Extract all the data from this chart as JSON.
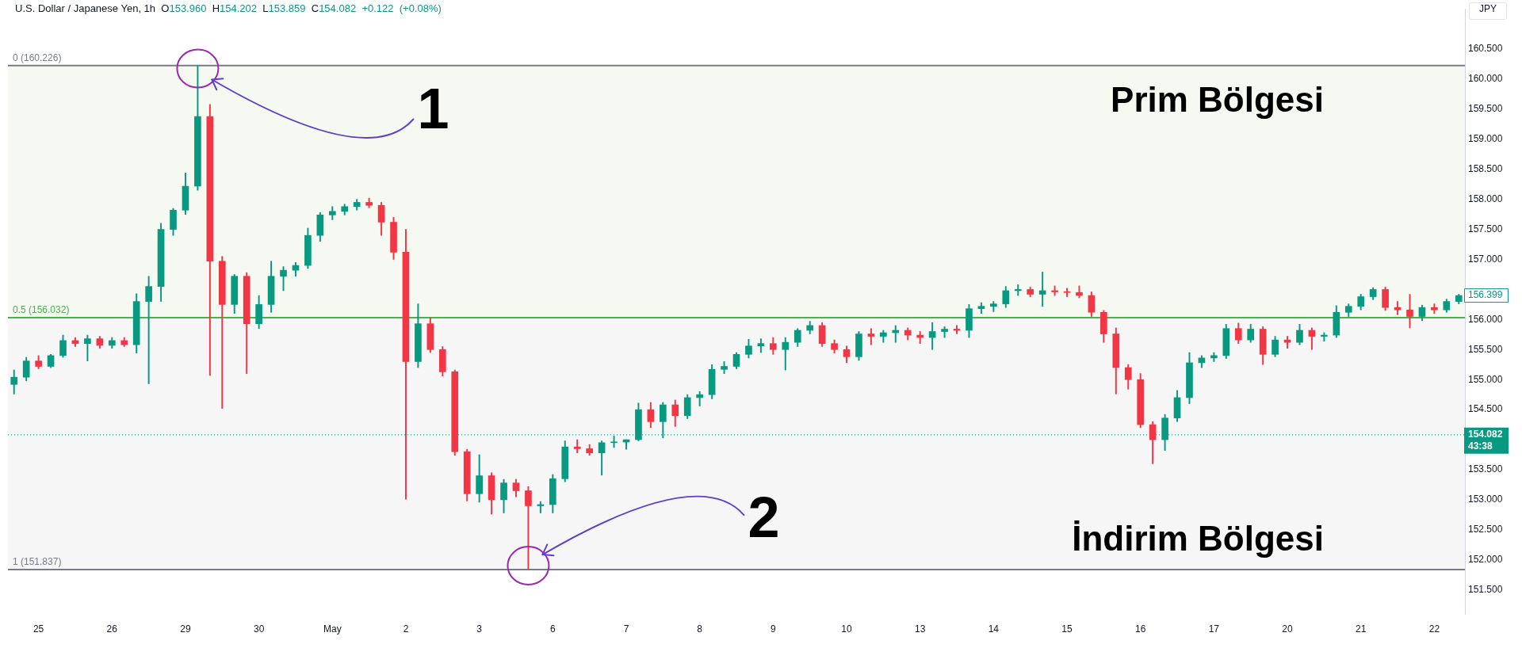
{
  "chart_data": {
    "type": "candlestick",
    "title": "U.S. Dollar / Japanese Yen, 1h",
    "subtitle": "O153.960 H154.202 L153.859 C154.082 +0.122 (+0.08%)",
    "ylabel": "JPY",
    "categories": [
      null,
      null,
      "25",
      null,
      null,
      null,
      null,
      null,
      "26",
      null,
      null,
      null,
      null,
      null,
      "29",
      null,
      null,
      null,
      null,
      null,
      "30",
      null,
      null,
      null,
      null,
      null,
      "May",
      null,
      null,
      null,
      null,
      null,
      "2",
      null,
      null,
      null,
      null,
      null,
      "3",
      null,
      null,
      null,
      null,
      null,
      "6",
      null,
      null,
      null,
      null,
      null,
      "7",
      null,
      null,
      null,
      null,
      null,
      "8",
      null,
      null,
      null,
      null,
      null,
      "9",
      null,
      null,
      null,
      null,
      null,
      "10",
      null,
      null,
      null,
      null,
      null,
      "13",
      null,
      null,
      null,
      null,
      null,
      "14",
      null,
      null,
      null,
      null,
      null,
      "15",
      null,
      null,
      null,
      null,
      null,
      "16",
      null,
      null,
      null,
      null,
      null,
      "17",
      null,
      null,
      null,
      null,
      null,
      "20",
      null,
      null,
      null,
      null,
      null,
      "21",
      null,
      null,
      null,
      null,
      null,
      "22",
      null,
      null
    ],
    "ohlc": [
      [
        154.92,
        155.16,
        154.76,
        155.04
      ],
      [
        155.04,
        155.37,
        154.98,
        155.31
      ],
      [
        155.31,
        155.4,
        155.18,
        155.22
      ],
      [
        155.22,
        155.42,
        155.2,
        155.4
      ],
      [
        155.4,
        155.74,
        155.37,
        155.65
      ],
      [
        155.65,
        155.7,
        155.55,
        155.6
      ],
      [
        155.6,
        155.74,
        155.31,
        155.68
      ],
      [
        155.68,
        155.72,
        155.52,
        155.57
      ],
      [
        155.57,
        155.7,
        155.52,
        155.65
      ],
      [
        155.65,
        155.7,
        155.55,
        155.58
      ],
      [
        155.58,
        156.43,
        155.44,
        156.3
      ],
      [
        156.3,
        156.72,
        154.93,
        156.55
      ],
      [
        156.55,
        157.6,
        156.3,
        157.5
      ],
      [
        157.5,
        157.85,
        157.4,
        157.82
      ],
      [
        157.82,
        158.44,
        157.75,
        158.22
      ],
      [
        158.22,
        160.23,
        158.15,
        159.38
      ],
      [
        159.38,
        159.58,
        155.07,
        156.97
      ],
      [
        156.97,
        157.05,
        154.52,
        156.25
      ],
      [
        156.25,
        156.75,
        156.1,
        156.72
      ],
      [
        156.72,
        156.78,
        155.1,
        155.93
      ],
      [
        155.93,
        156.4,
        155.85,
        156.25
      ],
      [
        156.25,
        156.97,
        156.12,
        156.72
      ],
      [
        156.72,
        156.88,
        156.48,
        156.82
      ],
      [
        156.82,
        156.95,
        156.72,
        156.9
      ],
      [
        156.9,
        157.52,
        156.85,
        157.4
      ],
      [
        157.4,
        157.78,
        157.3,
        157.74
      ],
      [
        157.74,
        157.88,
        157.66,
        157.8
      ],
      [
        157.8,
        157.92,
        157.74,
        157.88
      ],
      [
        157.88,
        158.0,
        157.82,
        157.95
      ],
      [
        157.95,
        158.02,
        157.86,
        157.9
      ],
      [
        157.9,
        157.95,
        157.4,
        157.62
      ],
      [
        157.62,
        157.7,
        157.0,
        157.12
      ],
      [
        157.12,
        157.5,
        153.01,
        155.3
      ],
      [
        155.3,
        156.26,
        155.2,
        155.93
      ],
      [
        155.93,
        156.03,
        155.45,
        155.5
      ],
      [
        155.5,
        155.55,
        155.06,
        155.13
      ],
      [
        155.13,
        155.16,
        153.74,
        153.8
      ],
      [
        153.8,
        153.84,
        152.98,
        153.1
      ],
      [
        153.1,
        153.75,
        152.96,
        153.4
      ],
      [
        153.4,
        153.45,
        152.76,
        153.0
      ],
      [
        153.0,
        153.34,
        152.78,
        153.28
      ],
      [
        153.28,
        153.34,
        153.05,
        153.15
      ],
      [
        153.15,
        153.22,
        151.85,
        152.9
      ],
      [
        152.9,
        152.97,
        152.78,
        152.92
      ],
      [
        152.92,
        153.42,
        152.78,
        153.35
      ],
      [
        153.35,
        153.98,
        153.3,
        153.88
      ],
      [
        153.88,
        154.0,
        153.78,
        153.85
      ],
      [
        153.85,
        153.92,
        153.74,
        153.78
      ],
      [
        153.78,
        153.98,
        153.41,
        153.95
      ],
      [
        153.95,
        154.06,
        153.87,
        153.96
      ],
      [
        153.96,
        154.0,
        153.84,
        154.0
      ],
      [
        154.0,
        154.61,
        153.98,
        154.5
      ],
      [
        154.5,
        154.62,
        154.2,
        154.3
      ],
      [
        154.3,
        154.62,
        154.03,
        154.58
      ],
      [
        154.58,
        154.66,
        154.22,
        154.4
      ],
      [
        154.4,
        154.75,
        154.35,
        154.7
      ],
      [
        154.7,
        154.8,
        154.56,
        154.75
      ],
      [
        154.75,
        155.25,
        154.68,
        155.17
      ],
      [
        155.17,
        155.3,
        155.1,
        155.22
      ],
      [
        155.22,
        155.45,
        155.18,
        155.42
      ],
      [
        155.42,
        155.67,
        155.36,
        155.56
      ],
      [
        155.56,
        155.68,
        155.45,
        155.6
      ],
      [
        155.6,
        155.7,
        155.42,
        155.5
      ],
      [
        155.5,
        155.7,
        155.16,
        155.62
      ],
      [
        155.62,
        155.85,
        155.55,
        155.82
      ],
      [
        155.82,
        155.97,
        155.76,
        155.9
      ],
      [
        155.9,
        155.95,
        155.55,
        155.6
      ],
      [
        155.6,
        155.66,
        155.44,
        155.5
      ],
      [
        155.5,
        155.56,
        155.28,
        155.38
      ],
      [
        155.38,
        155.8,
        155.32,
        155.76
      ],
      [
        155.76,
        155.85,
        155.58,
        155.72
      ],
      [
        155.72,
        155.82,
        155.62,
        155.78
      ],
      [
        155.78,
        155.9,
        155.62,
        155.82
      ],
      [
        155.82,
        155.86,
        155.66,
        155.74
      ],
      [
        155.74,
        155.8,
        155.6,
        155.7
      ],
      [
        155.7,
        155.95,
        155.5,
        155.8
      ],
      [
        155.8,
        155.88,
        155.7,
        155.84
      ],
      [
        155.84,
        155.9,
        155.76,
        155.82
      ],
      [
        155.82,
        156.25,
        155.7,
        156.18
      ],
      [
        156.18,
        156.28,
        156.1,
        156.22
      ],
      [
        156.22,
        156.3,
        156.13,
        156.26
      ],
      [
        156.26,
        156.55,
        156.2,
        156.48
      ],
      [
        156.48,
        156.58,
        156.4,
        156.5
      ],
      [
        156.5,
        156.54,
        156.38,
        156.42
      ],
      [
        156.42,
        156.79,
        156.22,
        156.48
      ],
      [
        156.48,
        156.56,
        156.4,
        156.46
      ],
      [
        156.46,
        156.52,
        156.38,
        156.45
      ],
      [
        156.45,
        156.56,
        156.36,
        156.4
      ],
      [
        156.4,
        156.46,
        156.05,
        156.12
      ],
      [
        156.12,
        156.15,
        155.62,
        155.76
      ],
      [
        155.76,
        155.86,
        154.76,
        155.2
      ],
      [
        155.2,
        155.25,
        154.84,
        155.0
      ],
      [
        155.0,
        155.1,
        154.2,
        154.25
      ],
      [
        154.25,
        154.3,
        153.6,
        154.0
      ],
      [
        154.0,
        154.42,
        153.82,
        154.36
      ],
      [
        154.36,
        154.82,
        154.3,
        154.7
      ],
      [
        154.7,
        155.45,
        154.6,
        155.28
      ],
      [
        155.28,
        155.4,
        155.2,
        155.36
      ],
      [
        155.36,
        155.45,
        155.3,
        155.4
      ],
      [
        155.4,
        155.92,
        155.35,
        155.85
      ],
      [
        155.85,
        155.94,
        155.6,
        155.66
      ],
      [
        155.66,
        155.92,
        155.62,
        155.84
      ],
      [
        155.84,
        155.88,
        155.25,
        155.42
      ],
      [
        155.42,
        155.72,
        155.38,
        155.66
      ],
      [
        155.66,
        155.72,
        155.52,
        155.62
      ],
      [
        155.62,
        155.92,
        155.58,
        155.82
      ],
      [
        155.82,
        155.86,
        155.5,
        155.72
      ],
      [
        155.72,
        155.78,
        155.64,
        155.74
      ],
      [
        155.74,
        156.23,
        155.7,
        156.12
      ],
      [
        156.12,
        156.26,
        156.05,
        156.22
      ],
      [
        156.22,
        156.42,
        156.16,
        156.38
      ],
      [
        156.38,
        156.53,
        156.33,
        156.5
      ],
      [
        156.5,
        156.54,
        156.15,
        156.2
      ],
      [
        156.2,
        156.3,
        156.08,
        156.16
      ],
      [
        156.16,
        156.42,
        155.86,
        156.05
      ],
      [
        156.05,
        156.24,
        155.98,
        156.2
      ],
      [
        156.2,
        156.26,
        156.1,
        156.16
      ],
      [
        156.16,
        156.34,
        156.12,
        156.3
      ],
      [
        156.3,
        156.42,
        156.26,
        156.399
      ]
    ],
    "colors": [
      "#089981",
      "#089981",
      "#f23645",
      "#089981",
      "#089981",
      "#f23645",
      "#089981",
      "#f23645",
      "#089981",
      "#f23645",
      "#089981",
      "#089981",
      "#089981",
      "#089981",
      "#089981",
      "#089981",
      "#f23645",
      "#f23645",
      "#089981",
      "#f23645",
      "#089981",
      "#089981",
      "#089981",
      "#089981",
      "#089981",
      "#089981",
      "#089981",
      "#089981",
      "#089981",
      "#f23645",
      "#f23645",
      "#f23645",
      "#f23645",
      "#089981",
      "#f23645",
      "#f23645",
      "#f23645",
      "#f23645",
      "#089981",
      "#f23645",
      "#089981",
      "#f23645",
      "#f23645",
      "#089981",
      "#089981",
      "#089981",
      "#f23645",
      "#f23645",
      "#089981",
      "#089981",
      "#089981",
      "#089981",
      "#f23645",
      "#089981",
      "#f23645",
      "#089981",
      "#089981",
      "#089981",
      "#089981",
      "#089981",
      "#089981",
      "#089981",
      "#f23645",
      "#089981",
      "#089981",
      "#089981",
      "#f23645",
      "#f23645",
      "#f23645",
      "#089981",
      "#f23645",
      "#089981",
      "#089981",
      "#f23645",
      "#f23645",
      "#089981",
      "#089981",
      "#f23645",
      "#089981",
      "#089981",
      "#089981",
      "#089981",
      "#089981",
      "#f23645",
      "#089981",
      "#f23645",
      "#f23645",
      "#f23645",
      "#f23645",
      "#f23645",
      "#f23645",
      "#f23645",
      "#f23645",
      "#f23645",
      "#089981",
      "#089981",
      "#089981",
      "#089981",
      "#089981",
      "#089981",
      "#f23645",
      "#089981",
      "#f23645",
      "#089981",
      "#f23645",
      "#089981",
      "#f23645",
      "#089981",
      "#089981",
      "#089981",
      "#089981",
      "#089981",
      "#f23645",
      "#f23645",
      "#f23645",
      "#089981",
      "#f23645",
      "#089981",
      "#089981"
    ],
    "ylim": [
      151.1,
      161.17
    ],
    "yticks": [
      {
        "value": 151.5,
        "label": "151.500"
      },
      {
        "value": 152,
        "label": "152.000"
      },
      {
        "value": 152.5,
        "label": "152.500"
      },
      {
        "value": 153,
        "label": "153.000"
      },
      {
        "value": 153.5,
        "label": "153.500"
      },
      {
        "value": 154.5,
        "label": "154.500"
      },
      {
        "value": 155,
        "label": "155.000"
      },
      {
        "value": 155.5,
        "label": "155.500"
      },
      {
        "value": 156,
        "label": "156.000"
      },
      {
        "value": 157,
        "label": "157.000"
      },
      {
        "value": 157.5,
        "label": "157.500"
      },
      {
        "value": 158,
        "label": "158.000"
      },
      {
        "value": 158.5,
        "label": "158.500"
      },
      {
        "value": 159,
        "label": "159.000"
      },
      {
        "value": 159.5,
        "label": "159.500"
      },
      {
        "value": 160,
        "label": "160.000"
      },
      {
        "value": 160.5,
        "label": "160.500"
      }
    ],
    "bands": [
      {
        "axis": "y",
        "from": 156.032,
        "to": 160.226,
        "label": "Prim Bölgesi",
        "color": "#f6f9f2"
      },
      {
        "axis": "y",
        "from": 151.837,
        "to": 156.032,
        "label": "İndirim Bölgesi",
        "color": "#f6f6f6"
      }
    ],
    "ref_lines": [
      {
        "axis": "y",
        "value": 160.226,
        "label": "0 (160.226)",
        "color": "#787b86"
      },
      {
        "axis": "y",
        "value": 156.032,
        "label": "0.5 (156.032)",
        "color": "#4caf50"
      },
      {
        "axis": "y",
        "value": 151.837,
        "label": "1 (151.837)",
        "color": "#787b86"
      },
      {
        "axis": "y",
        "value": 154.082,
        "label": "154.082\n43:38",
        "color": "#089981",
        "line_style": "dotted"
      }
    ],
    "annotations": [
      "1",
      "2",
      "156.399"
    ]
  }
}
